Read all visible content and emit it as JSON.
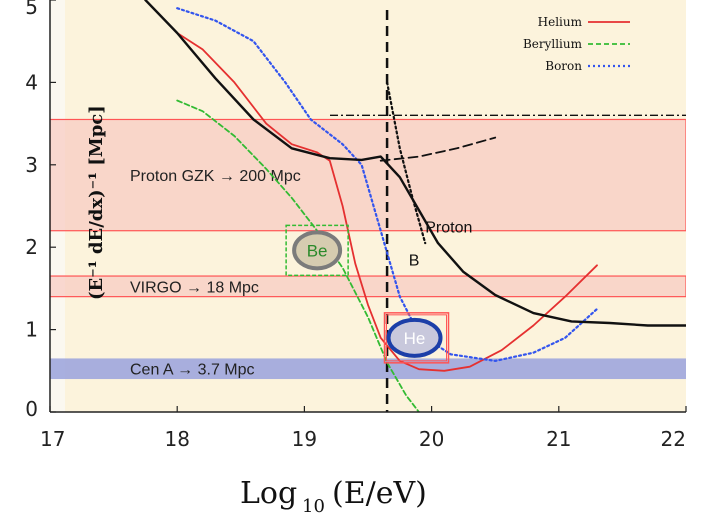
{
  "chart_data": {
    "type": "line",
    "title": "",
    "xlabel": {
      "main": "Log",
      "sub": "10",
      "tail": "(E/eV)"
    },
    "ylabel": "(E⁻¹ dE/dx)⁻¹ [Mpc]",
    "xlim": [
      17,
      22
    ],
    "ylim": [
      0,
      5
    ],
    "x_ticks": [
      "17",
      "18",
      "19",
      "20",
      "21",
      "22"
    ],
    "y_ticks": [
      "0",
      "1",
      "2",
      "3",
      "4",
      "5"
    ],
    "legend_position": "top-right",
    "colors": {
      "helium": "#e53030",
      "beryllium": "#33bb33",
      "boron": "#3355ee",
      "proton": "#111111",
      "band_red": "#ff5555",
      "band_red_fill": "#f8c9c0",
      "band_blue_fill": "#9ea6dd",
      "background": "#fcf3dc"
    },
    "series": [
      {
        "name": "Helium",
        "key": "helium",
        "style": "solid",
        "points": [
          [
            18.0,
            4.6
          ],
          [
            18.2,
            4.4
          ],
          [
            18.45,
            4.0
          ],
          [
            18.7,
            3.5
          ],
          [
            18.9,
            3.25
          ],
          [
            19.1,
            3.15
          ],
          [
            19.2,
            3.05
          ],
          [
            19.3,
            2.5
          ],
          [
            19.4,
            1.8
          ],
          [
            19.5,
            1.3
          ],
          [
            19.6,
            0.9
          ],
          [
            19.75,
            0.62
          ],
          [
            19.9,
            0.52
          ],
          [
            20.1,
            0.5
          ],
          [
            20.3,
            0.55
          ],
          [
            20.55,
            0.75
          ],
          [
            20.8,
            1.05
          ],
          [
            21.05,
            1.4
          ],
          [
            21.3,
            1.78
          ]
        ]
      },
      {
        "name": "Beryllium",
        "key": "beryllium",
        "style": "dashed",
        "points": [
          [
            18.0,
            3.78
          ],
          [
            18.2,
            3.65
          ],
          [
            18.45,
            3.35
          ],
          [
            18.7,
            2.95
          ],
          [
            18.9,
            2.6
          ],
          [
            19.1,
            2.2
          ],
          [
            19.3,
            1.75
          ],
          [
            19.5,
            1.15
          ],
          [
            19.65,
            0.6
          ],
          [
            19.8,
            0.2
          ],
          [
            19.9,
            0.0
          ]
        ]
      },
      {
        "name": "Boron",
        "key": "boron",
        "style": "dotted",
        "points": [
          [
            18.0,
            4.9
          ],
          [
            18.3,
            4.75
          ],
          [
            18.6,
            4.5
          ],
          [
            18.85,
            4.0
          ],
          [
            19.05,
            3.55
          ],
          [
            19.3,
            3.25
          ],
          [
            19.45,
            3.0
          ],
          [
            19.6,
            2.2
          ],
          [
            19.75,
            1.4
          ],
          [
            19.9,
            0.95
          ],
          [
            20.15,
            0.7
          ],
          [
            20.5,
            0.62
          ],
          [
            20.8,
            0.72
          ],
          [
            21.05,
            0.9
          ],
          [
            21.3,
            1.25
          ]
        ]
      },
      {
        "name": "Proton",
        "key": "proton",
        "style": "solid",
        "points": [
          [
            17.75,
            5.0
          ],
          [
            18.0,
            4.6
          ],
          [
            18.3,
            4.05
          ],
          [
            18.6,
            3.55
          ],
          [
            18.9,
            3.2
          ],
          [
            19.2,
            3.08
          ],
          [
            19.45,
            3.06
          ],
          [
            19.6,
            3.1
          ],
          [
            19.75,
            2.85
          ],
          [
            19.9,
            2.45
          ],
          [
            20.05,
            2.05
          ],
          [
            20.25,
            1.7
          ],
          [
            20.5,
            1.42
          ],
          [
            20.8,
            1.2
          ],
          [
            21.1,
            1.1
          ],
          [
            21.4,
            1.08
          ],
          [
            21.7,
            1.05
          ],
          [
            22.0,
            1.05
          ]
        ]
      },
      {
        "name": "",
        "key": "proton-dashed",
        "style": "dashed",
        "points": [
          [
            19.6,
            3.05
          ],
          [
            19.9,
            3.1
          ],
          [
            20.2,
            3.2
          ],
          [
            20.5,
            3.33
          ]
        ]
      },
      {
        "name": "",
        "key": "proton-dotted",
        "style": "dotted",
        "points": [
          [
            19.65,
            4.0
          ],
          [
            19.75,
            3.2
          ],
          [
            19.85,
            2.6
          ],
          [
            19.95,
            2.05
          ]
        ]
      }
    ],
    "reference_lines": {
      "vertical_x": 19.65,
      "horizontal_y": 3.6
    },
    "bands": [
      {
        "label": "Proton GZK → 200 Mpc",
        "y_range": [
          2.2,
          3.55
        ],
        "kind": "red"
      },
      {
        "label": "VIRGO → 18 Mpc",
        "y_range": [
          1.4,
          1.65
        ],
        "kind": "red"
      },
      {
        "label": "Cen A → 3.7 Mpc",
        "y_range": [
          0.4,
          0.65
        ],
        "kind": "blue"
      }
    ],
    "annotations": [
      {
        "text": "Proton",
        "x": 19.95,
        "y": 2.25
      },
      {
        "text": "B",
        "x": 19.82,
        "y": 1.85
      }
    ],
    "markers": [
      {
        "text": "Be",
        "x": 19.1,
        "y": 1.95,
        "kind": "be"
      },
      {
        "text": "He",
        "x": 19.85,
        "y": 0.9,
        "kind": "he"
      }
    ]
  }
}
